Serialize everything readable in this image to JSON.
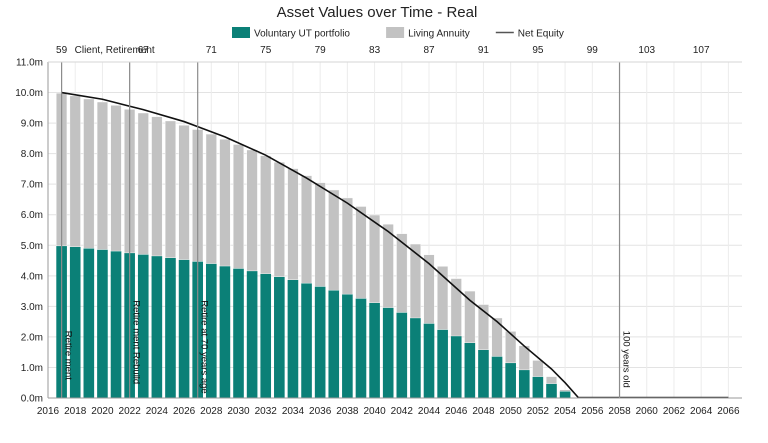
{
  "chart_data": {
    "type": "bar",
    "title": "Asset Values over Time - Real",
    "xlabel": "",
    "ylabel": "",
    "ylim": [
      0,
      11
    ],
    "y_ticks": [
      "0.0m",
      "1.0m",
      "2.0m",
      "3.0m",
      "4.0m",
      "5.0m",
      "6.0m",
      "7.0m",
      "8.0m",
      "9.0m",
      "10.0m",
      "11.0m"
    ],
    "x_range": [
      2016,
      2067
    ],
    "x_ticks": [
      "2016",
      "2018",
      "2020",
      "2022",
      "2024",
      "2026",
      "2028",
      "2030",
      "2032",
      "2034",
      "2036",
      "2038",
      "2040",
      "2042",
      "2044",
      "2046",
      "2048",
      "2050",
      "2052",
      "2054",
      "2056",
      "2058",
      "2060",
      "2062",
      "2064",
      "2066"
    ],
    "top_axis": {
      "labels": [
        "59",
        "67",
        "71",
        "75",
        "79",
        "83",
        "87",
        "91",
        "95",
        "99",
        "103",
        "107"
      ],
      "positions": [
        2017,
        2023,
        2028,
        2032,
        2036,
        2040,
        2044,
        2048,
        2052,
        2056,
        2060,
        2064
      ]
    },
    "legend": {
      "placement": "top",
      "items": [
        {
          "label": "Voluntary UT portfolio",
          "kind": "bar",
          "color": "#0b8077"
        },
        {
          "label": "Living Annuity",
          "kind": "bar",
          "color": "#c2c2c2"
        },
        {
          "label": "Net Equity",
          "kind": "line",
          "color": "#555555"
        }
      ]
    },
    "grid": true,
    "categories": [
      "2017",
      "2018",
      "2019",
      "2020",
      "2021",
      "2022",
      "2023",
      "2024",
      "2025",
      "2026",
      "2027",
      "2028",
      "2029",
      "2030",
      "2031",
      "2032",
      "2033",
      "2034",
      "2035",
      "2036",
      "2037",
      "2038",
      "2039",
      "2040",
      "2041",
      "2042",
      "2043",
      "2044",
      "2045",
      "2046",
      "2047",
      "2048",
      "2049",
      "2050",
      "2051",
      "2052",
      "2053",
      "2054",
      "2055"
    ],
    "series": [
      {
        "name": "Voluntary UT portfolio",
        "color": "#0b8077",
        "values": [
          4.98,
          4.95,
          4.9,
          4.86,
          4.81,
          4.75,
          4.7,
          4.65,
          4.59,
          4.53,
          4.47,
          4.4,
          4.32,
          4.24,
          4.16,
          4.07,
          3.97,
          3.87,
          3.76,
          3.65,
          3.53,
          3.4,
          3.26,
          3.12,
          2.96,
          2.8,
          2.62,
          2.44,
          2.24,
          2.03,
          1.81,
          1.58,
          1.36,
          1.15,
          0.92,
          0.7,
          0.47,
          0.22,
          0.0
        ]
      },
      {
        "name": "Living Annuity",
        "color": "#c2c2c2",
        "values": [
          5.0,
          4.94,
          4.89,
          4.83,
          4.77,
          4.7,
          4.63,
          4.56,
          4.48,
          4.4,
          4.32,
          4.24,
          4.15,
          4.06,
          3.96,
          3.86,
          3.75,
          3.64,
          3.52,
          3.4,
          3.28,
          3.15,
          3.01,
          2.87,
          2.73,
          2.58,
          2.42,
          2.25,
          2.07,
          1.88,
          1.69,
          1.48,
          1.26,
          1.03,
          0.79,
          0.53,
          0.23,
          0.05,
          0.0
        ]
      },
      {
        "name": "Net Equity",
        "kind": "line",
        "color": "#111111",
        "x": [
          2017,
          2020,
          2023,
          2026,
          2029,
          2032,
          2035,
          2038,
          2041,
          2044,
          2047,
          2049,
          2051,
          2053,
          2054,
          2055
        ],
        "values": [
          10.0,
          9.78,
          9.44,
          9.05,
          8.55,
          7.95,
          7.2,
          6.38,
          5.45,
          4.4,
          3.2,
          2.5,
          1.7,
          0.95,
          0.5,
          0.0
        ]
      }
    ],
    "markers": [
      {
        "x": 2017,
        "label": "Retire ment",
        "label_side": "bottom"
      },
      {
        "x": 2022,
        "label": "Client, Retirement",
        "label_side": "top"
      },
      {
        "x": 2022,
        "label": "Retire ment Rebuild",
        "label_side": "middle"
      },
      {
        "x": 2027,
        "label": "Retire at 70 years age",
        "label_side": "middle"
      },
      {
        "x": 2058,
        "label": "100 years old",
        "label_side": "bottom"
      }
    ]
  }
}
